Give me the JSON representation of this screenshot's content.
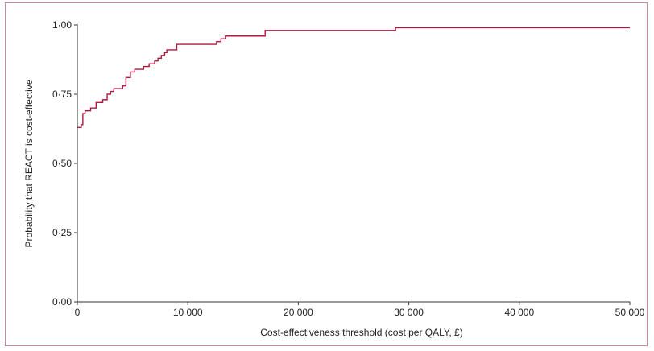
{
  "chart_data": {
    "type": "line",
    "xlabel": "Cost-effectiveness threshold (cost per QALY, £)",
    "ylabel": "Probability that REACT is cost-effective",
    "xlim": [
      0,
      50000
    ],
    "ylim": [
      0,
      1
    ],
    "x_ticks": [
      0,
      10000,
      20000,
      30000,
      40000,
      50000
    ],
    "x_tick_labels": [
      "0",
      "10 000",
      "20 000",
      "30 000",
      "40 000",
      "50 000"
    ],
    "y_ticks": [
      0,
      0.25,
      0.5,
      0.75,
      1.0
    ],
    "y_tick_labels": [
      "0·00",
      "0·25",
      "0·50",
      "0·75",
      "1·00"
    ],
    "grid": false,
    "line_color": "#b0193e",
    "series": [
      {
        "step": true,
        "x": [
          0,
          350,
          500,
          700,
          1200,
          1700,
          2300,
          2700,
          3000,
          3300,
          4100,
          4400,
          4800,
          5200,
          6000,
          6500,
          7000,
          7300,
          7600,
          7900,
          8100,
          8300,
          9000,
          12600,
          13000,
          13400,
          17000,
          28800,
          50000
        ],
        "y": [
          0.63,
          0.64,
          0.68,
          0.69,
          0.7,
          0.72,
          0.73,
          0.75,
          0.76,
          0.77,
          0.78,
          0.81,
          0.83,
          0.84,
          0.85,
          0.86,
          0.87,
          0.88,
          0.89,
          0.9,
          0.91,
          0.91,
          0.93,
          0.94,
          0.95,
          0.96,
          0.98,
          0.99,
          0.99
        ]
      }
    ]
  }
}
